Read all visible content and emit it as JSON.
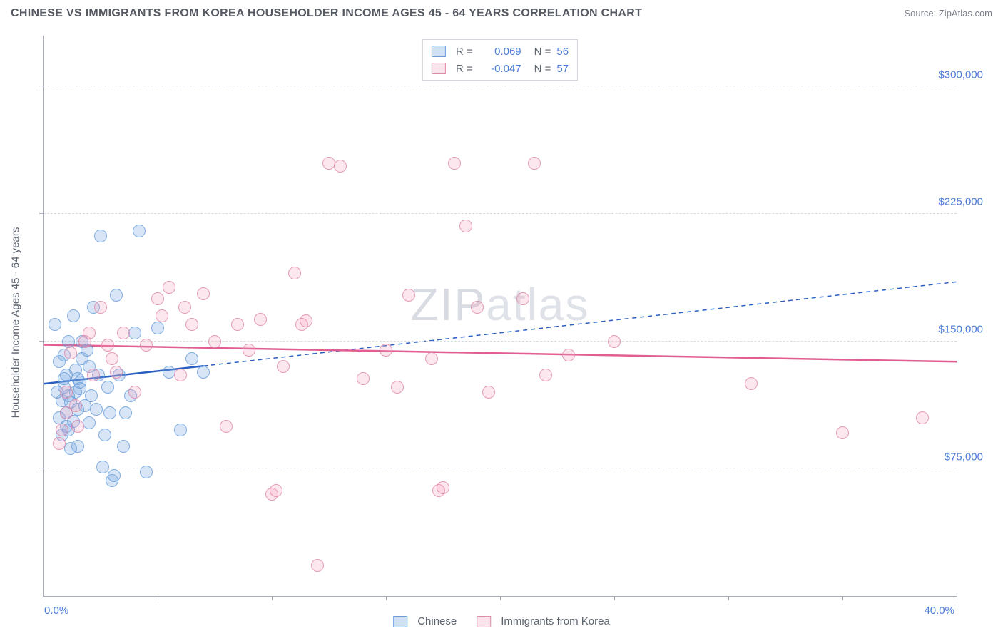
{
  "header": {
    "title": "CHINESE VS IMMIGRANTS FROM KOREA HOUSEHOLDER INCOME AGES 45 - 64 YEARS CORRELATION CHART",
    "source": "Source: ZipAtlas.com"
  },
  "watermark": {
    "light": "ZIP",
    "rest": "atlas"
  },
  "chart": {
    "type": "scatter",
    "y_axis_title": "Householder Income Ages 45 - 64 years",
    "xlim": [
      0,
      40
    ],
    "ylim": [
      0,
      330000
    ],
    "x_tick_positions": [
      0,
      5,
      10,
      15,
      20,
      25,
      30,
      35,
      40
    ],
    "x_min_label": "0.0%",
    "x_max_label": "40.0%",
    "y_ticks": [
      {
        "val": 75000,
        "label": "$75,000"
      },
      {
        "val": 150000,
        "label": "$150,000"
      },
      {
        "val": 225000,
        "label": "$225,000"
      },
      {
        "val": 300000,
        "label": "$300,000"
      }
    ],
    "grid_color": "#d7dbe3",
    "axis_color": "#a7adb8",
    "series": [
      {
        "name": "Chinese",
        "color_fill": "rgba(119,168,225,0.35)",
        "color_stroke": "#6a9edb",
        "trend_color": "#2a5fc1",
        "trend_solid_until_x": 7,
        "trend_y_at_0": 125000,
        "trend_y_at_40": 185000,
        "R": "0.069",
        "N": "56",
        "points": [
          [
            0.5,
            160000
          ],
          [
            0.6,
            120000
          ],
          [
            0.7,
            105000
          ],
          [
            0.7,
            138000
          ],
          [
            0.8,
            95000
          ],
          [
            0.8,
            115000
          ],
          [
            0.9,
            123000
          ],
          [
            0.9,
            142000
          ],
          [
            1.0,
            108000
          ],
          [
            1.0,
            130000
          ],
          [
            1.1,
            98000
          ],
          [
            1.1,
            150000
          ],
          [
            1.2,
            87000
          ],
          [
            1.2,
            114000
          ],
          [
            1.3,
            103000
          ],
          [
            1.3,
            165000
          ],
          [
            1.4,
            120000
          ],
          [
            1.4,
            133000
          ],
          [
            1.5,
            88000
          ],
          [
            1.5,
            110000
          ],
          [
            1.6,
            126000
          ],
          [
            1.6,
            122000
          ],
          [
            1.7,
            140000
          ],
          [
            1.7,
            150000
          ],
          [
            1.8,
            112000
          ],
          [
            1.9,
            145000
          ],
          [
            2.0,
            102000
          ],
          [
            2.1,
            118000
          ],
          [
            2.2,
            170000
          ],
          [
            2.3,
            110000
          ],
          [
            2.4,
            130000
          ],
          [
            2.5,
            212000
          ],
          [
            2.6,
            76000
          ],
          [
            2.7,
            95000
          ],
          [
            2.8,
            123000
          ],
          [
            2.9,
            108000
          ],
          [
            3.0,
            68000
          ],
          [
            3.1,
            71000
          ],
          [
            3.2,
            177000
          ],
          [
            3.3,
            130000
          ],
          [
            3.5,
            88000
          ],
          [
            3.6,
            108000
          ],
          [
            3.8,
            118000
          ],
          [
            4.0,
            155000
          ],
          [
            4.2,
            215000
          ],
          [
            4.5,
            73000
          ],
          [
            5.0,
            158000
          ],
          [
            5.5,
            132000
          ],
          [
            6.0,
            98000
          ],
          [
            6.5,
            140000
          ],
          [
            7.0,
            132000
          ],
          [
            2.0,
            135000
          ],
          [
            1.5,
            128000
          ],
          [
            1.0,
            100000
          ],
          [
            1.1,
            118000
          ],
          [
            0.9,
            128000
          ]
        ]
      },
      {
        "name": "Immigrants from Korea",
        "color_fill": "rgba(244,160,188,0.30)",
        "color_stroke": "#e08aaa",
        "trend_color": "#e05e91",
        "trend_solid_until_x": 40,
        "trend_y_at_0": 148000,
        "trend_y_at_40": 138000,
        "R": "-0.047",
        "N": "57",
        "points": [
          [
            0.7,
            90000
          ],
          [
            1.0,
            108000
          ],
          [
            1.2,
            143000
          ],
          [
            1.5,
            100000
          ],
          [
            2.0,
            155000
          ],
          [
            2.2,
            130000
          ],
          [
            2.5,
            170000
          ],
          [
            3.0,
            140000
          ],
          [
            3.5,
            155000
          ],
          [
            4.0,
            120000
          ],
          [
            4.5,
            148000
          ],
          [
            5.0,
            175000
          ],
          [
            5.5,
            182000
          ],
          [
            6.0,
            130000
          ],
          [
            6.5,
            160000
          ],
          [
            7.0,
            178000
          ],
          [
            7.5,
            150000
          ],
          [
            8.0,
            100000
          ],
          [
            8.5,
            160000
          ],
          [
            9.0,
            145000
          ],
          [
            9.5,
            163000
          ],
          [
            10.0,
            60000
          ],
          [
            10.2,
            62000
          ],
          [
            10.5,
            135000
          ],
          [
            11.0,
            190000
          ],
          [
            11.3,
            160000
          ],
          [
            11.5,
            162000
          ],
          [
            12.0,
            18000
          ],
          [
            12.5,
            255000
          ],
          [
            13.0,
            253000
          ],
          [
            14.0,
            128000
          ],
          [
            15.0,
            145000
          ],
          [
            15.5,
            123000
          ],
          [
            16.0,
            177000
          ],
          [
            17.0,
            140000
          ],
          [
            17.3,
            62000
          ],
          [
            17.5,
            64000
          ],
          [
            18.0,
            255000
          ],
          [
            18.5,
            218000
          ],
          [
            19.0,
            170000
          ],
          [
            19.5,
            120000
          ],
          [
            21.0,
            175000
          ],
          [
            21.5,
            255000
          ],
          [
            22.0,
            130000
          ],
          [
            23.0,
            142000
          ],
          [
            25.0,
            150000
          ],
          [
            31.0,
            125000
          ],
          [
            35.0,
            96000
          ],
          [
            38.5,
            105000
          ],
          [
            1.8,
            150000
          ],
          [
            2.8,
            148000
          ],
          [
            3.2,
            132000
          ],
          [
            5.2,
            165000
          ],
          [
            6.2,
            170000
          ],
          [
            1.0,
            120000
          ],
          [
            1.4,
            112000
          ],
          [
            0.8,
            98000
          ]
        ]
      }
    ]
  },
  "legend_top": {
    "rows": [
      {
        "swatch_class": "blue",
        "R_label": "R =",
        "R_val": "0.069",
        "N_label": "N =",
        "N_val": "56"
      },
      {
        "swatch_class": "pink",
        "R_label": "R =",
        "R_val": "-0.047",
        "N_label": "N =",
        "N_val": "57"
      }
    ]
  },
  "legend_bottom": {
    "items": [
      {
        "swatch_class": "blue",
        "label": "Chinese"
      },
      {
        "swatch_class": "pink",
        "label": "Immigrants from Korea"
      }
    ]
  }
}
